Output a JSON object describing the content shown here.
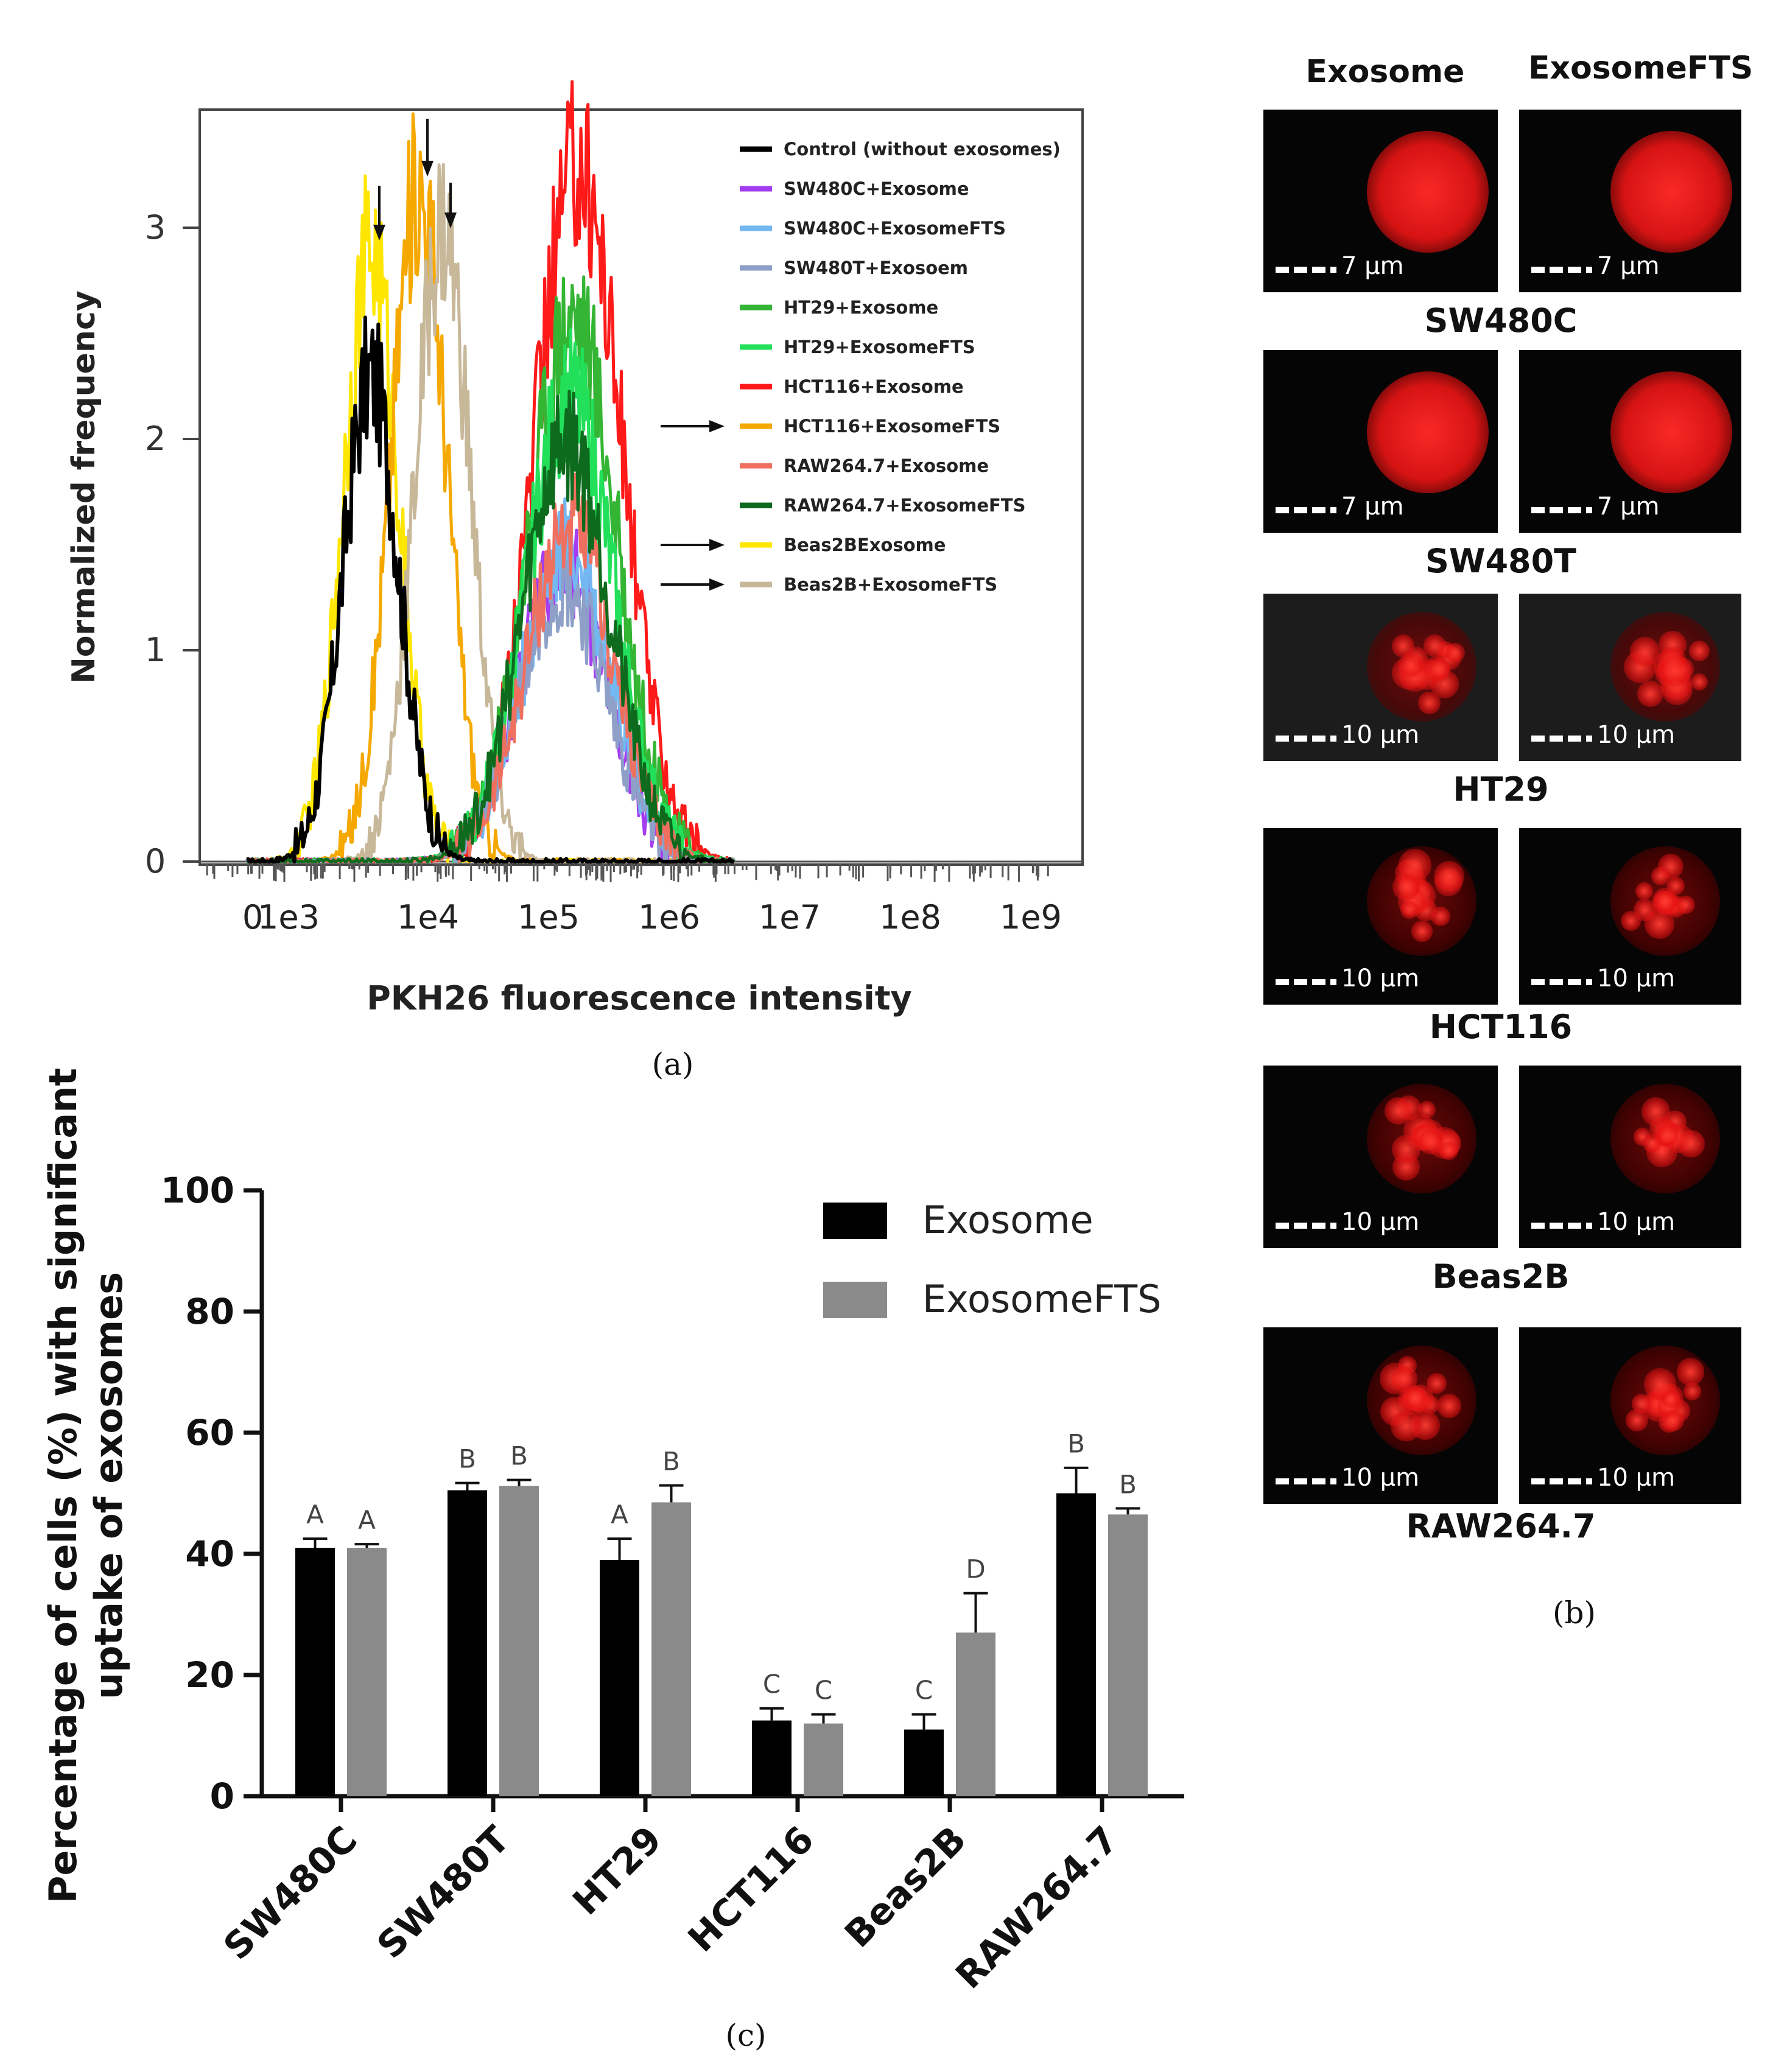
{
  "panel_a": {
    "letter": "(a)",
    "xlabel": "PKH26 fluorescence intensity",
    "ylabel": "Normalized frequency",
    "y_ticks": [
      "0",
      "1",
      "2",
      "3"
    ],
    "x_ticks": [
      "0",
      "1e3",
      "1e4",
      "1e5",
      "1e6",
      "1e7",
      "1e8",
      "1e9"
    ],
    "legend": [
      {
        "label": "Control (without exosomes)",
        "color": "#000000",
        "arrow": false
      },
      {
        "label": "SW480C+Exosome",
        "color": "#a33df0",
        "arrow": false
      },
      {
        "label": "SW480C+ExosomeFTS",
        "color": "#73b8f0",
        "arrow": false
      },
      {
        "label": "SW480T+Exosoem",
        "color": "#8ea0c8",
        "arrow": false
      },
      {
        "label": "HT29+Exosome",
        "color": "#34b534",
        "arrow": false
      },
      {
        "label": "HT29+ExosomeFTS",
        "color": "#22e05a",
        "arrow": false
      },
      {
        "label": "HCT116+Exosome",
        "color": "#ff1a1a",
        "arrow": false
      },
      {
        "label": "HCT116+ExosomeFTS",
        "color": "#f5a800",
        "arrow": true
      },
      {
        "label": "RAW264.7+Exosome",
        "color": "#f07060",
        "arrow": false
      },
      {
        "label": "RAW264.7+ExosomeFTS",
        "color": "#0e6b1e",
        "arrow": false
      },
      {
        "label": "Beas2BExosome",
        "color": "#ffe600",
        "arrow": true
      },
      {
        "label": "Beas2B+ExosomeFTS",
        "color": "#c8b89a",
        "arrow": true
      }
    ]
  },
  "panel_b": {
    "letter": "(b)",
    "columns": [
      "Exosome",
      "ExosomeFTS"
    ],
    "rows": [
      {
        "label": "SW480C",
        "scale": "7 μm"
      },
      {
        "label": "SW480T",
        "scale": "7 μm"
      },
      {
        "label": "HT29",
        "scale": "10 μm"
      },
      {
        "label": "HCT116",
        "scale": "10 μm"
      },
      {
        "label": "Beas2B",
        "scale": "10 μm"
      },
      {
        "label": "RAW264.7",
        "scale": "10 μm"
      }
    ]
  },
  "chart_data": [
    {
      "type": "line",
      "title": "",
      "xlabel": "PKH26 fluorescence intensity",
      "ylabel": "Normalized frequency",
      "x_scale": "log",
      "ylim": [
        0,
        3.5
      ],
      "series": [
        {
          "name": "Control (without exosomes)",
          "color": "#000000",
          "peak_x": 3800,
          "peak_y": 2.3
        },
        {
          "name": "Beas2BExosome",
          "color": "#ffe600",
          "peak_x": 3800,
          "peak_y": 2.9
        },
        {
          "name": "HCT116+ExosomeFTS",
          "color": "#f5a800",
          "peak_x": 9500,
          "peak_y": 3.2
        },
        {
          "name": "Beas2B+ExosomeFTS",
          "color": "#c8b89a",
          "peak_x": 15000,
          "peak_y": 3.0
        },
        {
          "name": "HCT116+Exosome",
          "color": "#ff1a1a",
          "peak_x": 200000,
          "peak_y": 3.3
        },
        {
          "name": "HT29+Exosome",
          "color": "#34b534",
          "peak_x": 180000,
          "peak_y": 2.6
        },
        {
          "name": "HT29+ExosomeFTS",
          "color": "#22e05a",
          "peak_x": 170000,
          "peak_y": 2.2
        },
        {
          "name": "RAW264.7+ExosomeFTS",
          "color": "#0e6b1e",
          "peak_x": 160000,
          "peak_y": 2.0
        },
        {
          "name": "SW480C+Exosome",
          "color": "#a33df0",
          "peak_x": 150000,
          "peak_y": 1.4
        },
        {
          "name": "SW480C+ExosomeFTS",
          "color": "#73b8f0",
          "peak_x": 160000,
          "peak_y": 1.5
        },
        {
          "name": "SW480T+Exosoem",
          "color": "#8ea0c8",
          "peak_x": 150000,
          "peak_y": 1.3
        },
        {
          "name": "RAW264.7+Exosome",
          "color": "#f07060",
          "peak_x": 170000,
          "peak_y": 1.6
        }
      ]
    },
    {
      "type": "bar",
      "title": "",
      "xlabel": "",
      "ylabel": "Percentage of cells (%) with significant uptake of exosomes",
      "ylim": [
        0,
        100
      ],
      "y_ticks": [
        "0",
        "20",
        "40",
        "60",
        "80",
        "100"
      ],
      "categories": [
        "SW480C",
        "SW480T",
        "HT29",
        "HCT116",
        "Beas2B",
        "RAW264.7"
      ],
      "series": [
        {
          "name": "Exosome",
          "color": "#000000",
          "values": [
            41,
            50.5,
            39,
            12.5,
            11,
            50
          ],
          "errors": [
            1.5,
            1.2,
            3.5,
            2,
            2.5,
            4.2
          ],
          "letters": [
            "A",
            "B",
            "A",
            "C",
            "C",
            "B"
          ]
        },
        {
          "name": "ExosomeFTS",
          "color": "#8a8a8a",
          "values": [
            41,
            51.2,
            48.5,
            12,
            27,
            46.5
          ],
          "errors": [
            0.6,
            1,
            2.8,
            1.5,
            6.5,
            1
          ],
          "letters": [
            "A",
            "B",
            "B",
            "C",
            "D",
            "B"
          ]
        }
      ]
    }
  ],
  "panel_c": {
    "letter": "(c)"
  }
}
